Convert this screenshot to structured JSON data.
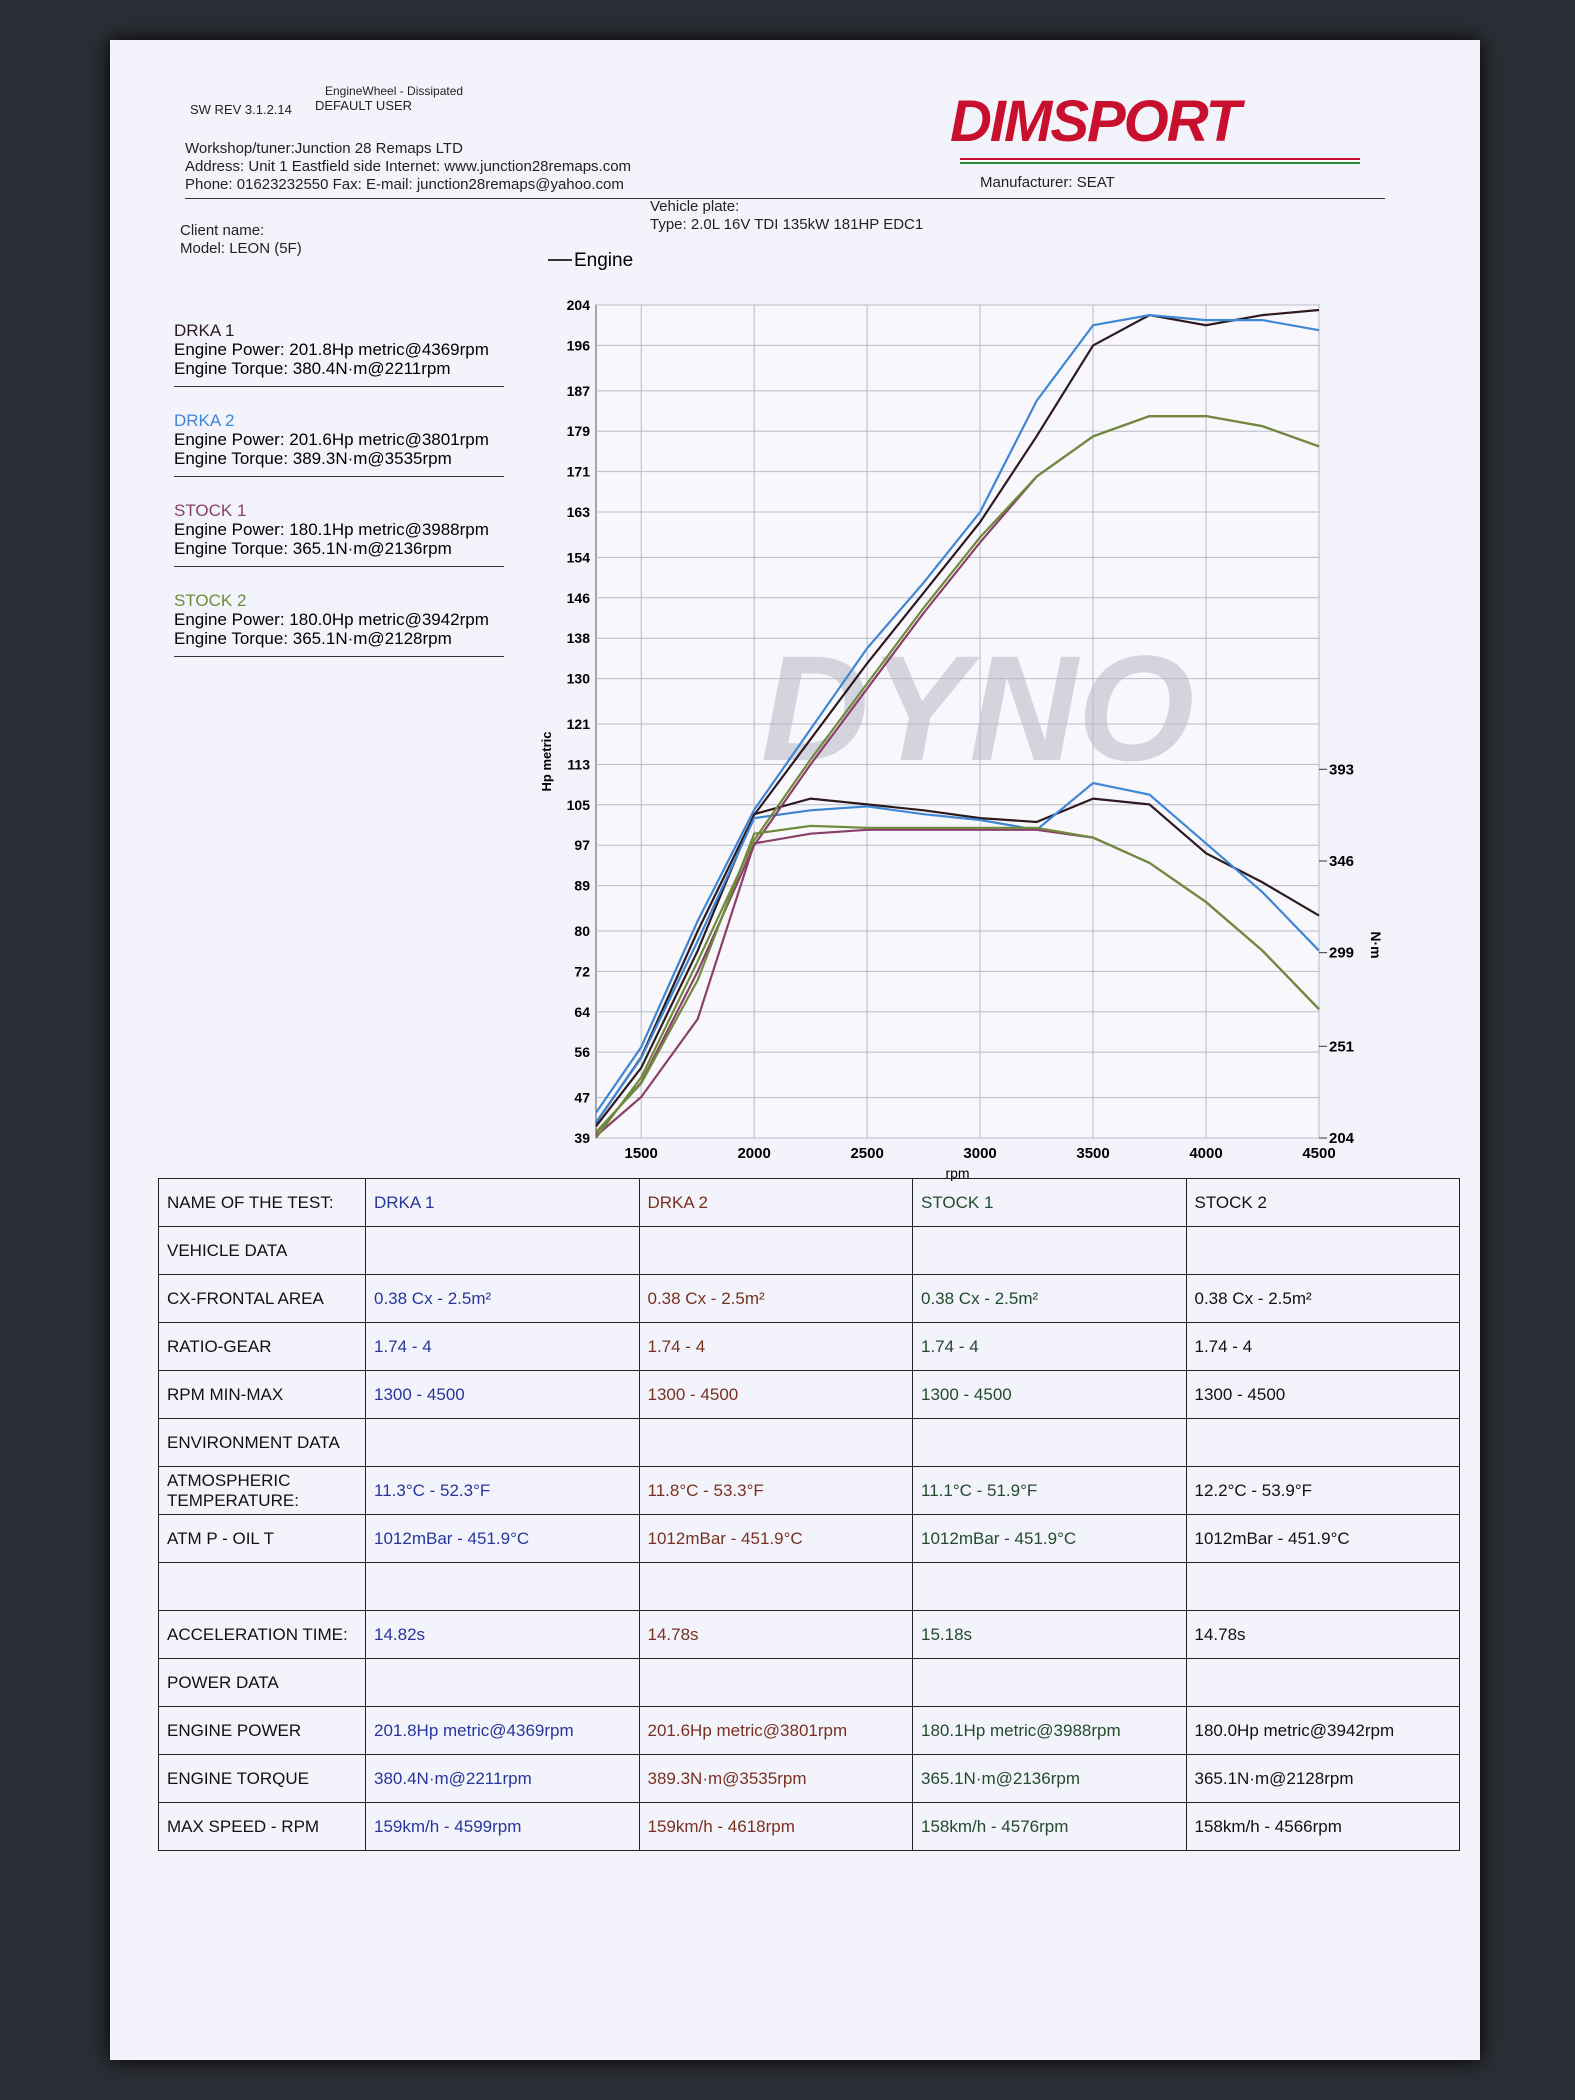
{
  "header": {
    "sw_rev": "SW REV 3.1.2.14",
    "mode": "EngineWheel - Dissipated",
    "user": "DEFAULT USER",
    "workshop": "Workshop/tuner:Junction 28 Remaps LTD",
    "address": "Address: Unit 1 Eastfield side Internet: www.junction28remaps.com",
    "phone": "Phone: 01623232550 Fax:  E-mail: junction28remaps@yahoo.com",
    "client": "Client name:",
    "model": "Model: LEON (5F)",
    "plate": "Vehicle plate:",
    "type": "Type: 2.0L 16V TDI 135kW 181HP EDC1",
    "manufacturer": "Manufacturer: SEAT",
    "logo": "DIMSPORT"
  },
  "results": [
    {
      "power": "Engine Power: 201.8Hp metric@4369rpm",
      "torque": "Engine Torque: 380.4N·m@2211rpm"
    },
    {
      "power": "Engine Power: 201.6Hp metric@3801rpm",
      "torque": "Engine Torque: 389.3N·m@3535rpm"
    },
    {
      "power": "Engine Power: 180.1Hp metric@3988rpm",
      "torque": "Engine Torque: 365.1N·m@2136rpm"
    },
    {
      "power": "Engine Power: 180.0Hp metric@3942rpm",
      "torque": "Engine Torque: 365.1N·m@2128rpm"
    }
  ],
  "chart_data": {
    "type": "line",
    "legend": "Engine",
    "watermark": "DYNO",
    "x_label": "rpm",
    "y_label": "Hp metric",
    "y2_label": "N·m",
    "grid": true,
    "x": [
      1300,
      1500,
      1750,
      2000,
      2250,
      2500,
      2750,
      3000,
      3250,
      3500,
      3750,
      4000,
      4250,
      4500
    ],
    "xlim": [
      1300,
      4500
    ],
    "xticks": [
      1500,
      2000,
      2500,
      3000,
      3500,
      4000,
      4500
    ],
    "ylim": [
      39,
      204
    ],
    "yticks": [
      39,
      47,
      56,
      64,
      72,
      80,
      89,
      97,
      105,
      113,
      121,
      130,
      138,
      146,
      154,
      163,
      171,
      179,
      187,
      196,
      204
    ],
    "y2lim": [
      204,
      631
    ],
    "y2ticks": [
      204,
      251,
      299,
      346,
      393
    ],
    "series": [
      {
        "name": "DRKA 1",
        "color": "#2e1a1e",
        "values": [
          42,
          55,
          80,
          103,
          118,
          133,
          147,
          161,
          178,
          196,
          202,
          200,
          202,
          203
        ],
        "torque": [
          210,
          240,
          300,
          370,
          378,
          375,
          372,
          368,
          366,
          378,
          375,
          350,
          335,
          318
        ]
      },
      {
        "name": "DRKA 2",
        "color": "#3f86d4",
        "values": [
          44,
          57,
          82,
          104,
          120,
          136,
          149,
          163,
          185,
          200,
          202,
          201,
          201,
          199
        ],
        "torque": [
          212,
          245,
          305,
          368,
          372,
          374,
          370,
          367,
          362,
          386,
          380,
          355,
          330,
          300
        ]
      },
      {
        "name": "STOCK 1",
        "color": "#8a3f6a",
        "values": [
          40,
          50,
          72,
          97,
          113,
          128,
          143,
          157,
          170,
          178,
          182,
          182,
          180,
          176
        ],
        "torque": [
          205,
          225,
          265,
          355,
          360,
          362,
          362,
          362,
          362,
          358,
          345,
          325,
          300,
          270
        ]
      },
      {
        "name": "STOCK 2",
        "color": "#6f8a3a",
        "values": [
          39,
          51,
          74,
          98,
          114,
          129,
          144,
          158,
          170,
          178,
          182,
          182,
          180,
          176
        ],
        "torque": [
          207,
          232,
          285,
          360,
          364,
          363,
          363,
          363,
          363,
          358,
          345,
          325,
          300,
          270
        ]
      }
    ]
  },
  "table": {
    "rows": [
      [
        "NAME OF THE TEST:",
        "DRKA 1",
        "DRKA 2",
        "STOCK 1",
        "STOCK 2"
      ],
      [
        "VEHICLE DATA"
      ],
      [
        "CX-FRONTAL AREA",
        "0.38 Cx - 2.5m²",
        "0.38 Cx - 2.5m²",
        "0.38 Cx - 2.5m²",
        "0.38 Cx - 2.5m²"
      ],
      [
        "RATIO-GEAR",
        "1.74 - 4",
        "1.74 - 4",
        "1.74 - 4",
        "1.74 - 4"
      ],
      [
        "RPM MIN-MAX",
        "1300 - 4500",
        "1300 - 4500",
        "1300 - 4500",
        "1300 - 4500"
      ],
      [
        "ENVIRONMENT DATA"
      ],
      [
        "ATMOSPHERIC TEMPERATURE:",
        "11.3°C - 52.3°F",
        "11.8°C - 53.3°F",
        "11.1°C - 51.9°F",
        "12.2°C - 53.9°F"
      ],
      [
        "ATM P - OIL T",
        "1012mBar - 451.9°C",
        "1012mBar - 451.9°C",
        "1012mBar - 451.9°C",
        "1012mBar - 451.9°C"
      ],
      [],
      [
        "ACCELERATION TIME:",
        "14.82s",
        "14.78s",
        "15.18s",
        "14.78s"
      ],
      [
        "POWER DATA"
      ],
      [
        "ENGINE POWER",
        "201.8Hp metric@4369rpm",
        "201.6Hp metric@3801rpm",
        "180.1Hp metric@3988rpm",
        "180.0Hp metric@3942rpm"
      ],
      [
        "ENGINE TORQUE",
        "380.4N·m@2211rpm",
        "389.3N·m@3535rpm",
        "365.1N·m@2136rpm",
        "365.1N·m@2128rpm"
      ],
      [
        "MAX SPEED - RPM",
        "159km/h - 4599rpm",
        "159km/h - 4618rpm",
        "158km/h - 4576rpm",
        "158km/h - 4566rpm"
      ]
    ]
  }
}
